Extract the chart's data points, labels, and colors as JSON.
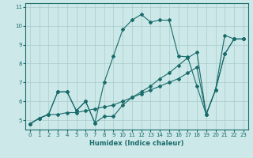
{
  "xlabel": "Humidex (Indice chaleur)",
  "bg_color": "#cce8e8",
  "grid_color": "#aacccc",
  "line_color": "#1a6b6b",
  "xlim": [
    -0.5,
    23.5
  ],
  "ylim": [
    4.5,
    11.2
  ],
  "xticks": [
    0,
    1,
    2,
    3,
    4,
    5,
    6,
    7,
    8,
    9,
    10,
    11,
    12,
    13,
    14,
    15,
    16,
    17,
    18,
    19,
    20,
    21,
    22,
    23
  ],
  "yticks": [
    5,
    6,
    7,
    8,
    9,
    10,
    11
  ],
  "line1_x": [
    0,
    1,
    2,
    3,
    4,
    5,
    6,
    7,
    8,
    9,
    10,
    11,
    12,
    13,
    14,
    15,
    16,
    17,
    18,
    19,
    20,
    21,
    22,
    23
  ],
  "line1_y": [
    4.8,
    5.1,
    5.3,
    5.3,
    5.4,
    5.4,
    5.5,
    5.6,
    5.7,
    5.8,
    6.0,
    6.2,
    6.4,
    6.6,
    6.8,
    7.0,
    7.2,
    7.5,
    7.8,
    5.3,
    6.6,
    8.5,
    9.3,
    9.3
  ],
  "line2_x": [
    0,
    1,
    2,
    3,
    4,
    5,
    6,
    7,
    8,
    9,
    10,
    11,
    12,
    13,
    14,
    15,
    16,
    17,
    18,
    19,
    20,
    21,
    22,
    23
  ],
  "line2_y": [
    4.8,
    5.1,
    5.3,
    6.5,
    6.5,
    5.5,
    6.0,
    4.85,
    5.2,
    5.2,
    5.8,
    6.2,
    6.5,
    6.8,
    7.2,
    7.5,
    7.9,
    8.3,
    8.6,
    5.3,
    6.6,
    8.5,
    9.3,
    9.3
  ],
  "line3_x": [
    0,
    1,
    2,
    3,
    4,
    5,
    6,
    7,
    8,
    9,
    10,
    11,
    12,
    13,
    14,
    15,
    16,
    17,
    18,
    19,
    20,
    21,
    22,
    23
  ],
  "line3_y": [
    4.8,
    5.1,
    5.3,
    6.5,
    6.5,
    5.5,
    6.0,
    4.85,
    7.0,
    8.4,
    9.8,
    10.3,
    10.6,
    10.2,
    10.3,
    10.3,
    8.4,
    8.35,
    6.8,
    5.3,
    6.6,
    9.5,
    9.3,
    9.3
  ],
  "marker": "D",
  "markersize": 2.0,
  "linewidth": 0.8
}
